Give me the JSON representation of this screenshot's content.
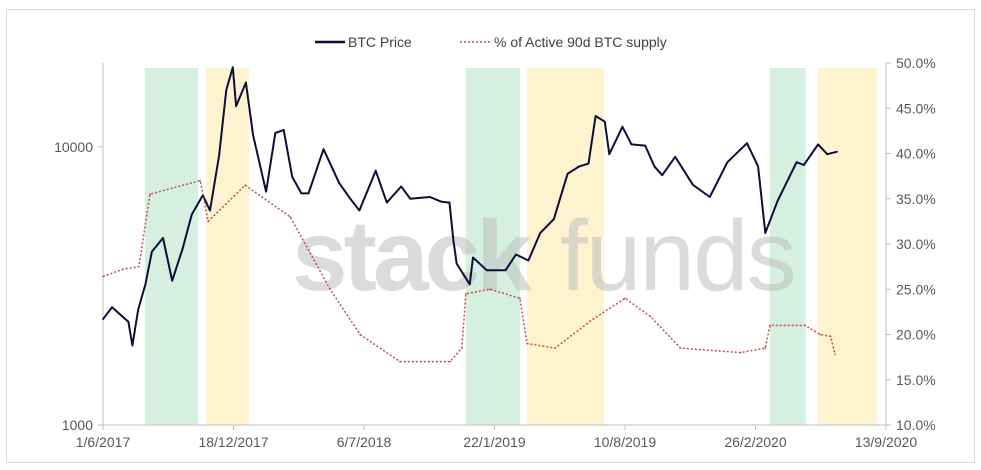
{
  "chart_data": {
    "type": "line",
    "title": "",
    "legend": {
      "placement": "top",
      "entries": [
        "BTC Price",
        "% of Active 90d BTC supply"
      ]
    },
    "watermark": "stackfunds™",
    "x_axis": {
      "type": "date",
      "range": [
        "2017-06-01",
        "2020-09-13"
      ],
      "tick_labels": [
        "1/6/2017",
        "18/12/2017",
        "6/7/2018",
        "22/1/2019",
        "10/8/2019",
        "26/2/2020",
        "13/9/2020"
      ],
      "tick_dates": [
        "2017-06-01",
        "2017-12-18",
        "2018-07-06",
        "2019-01-22",
        "2019-08-10",
        "2020-02-26",
        "2020-09-13"
      ]
    },
    "y_left": {
      "scale": "log",
      "range": [
        1000,
        20000
      ],
      "tick_labels": [
        "1000",
        "10000"
      ],
      "tick_values": [
        1000,
        10000
      ]
    },
    "y_right": {
      "scale": "linear",
      "range": [
        10,
        50
      ],
      "tick_labels": [
        "10.0%",
        "15.0%",
        "20.0%",
        "25.0%",
        "30.0%",
        "35.0%",
        "40.0%",
        "45.0%",
        "50.0%"
      ],
      "tick_values": [
        10,
        15,
        20,
        25,
        30,
        35,
        40,
        45,
        50
      ]
    },
    "grid": false,
    "bands": [
      {
        "color": "green",
        "start": "2017-08-04",
        "end": "2017-10-25"
      },
      {
        "color": "yellow",
        "start": "2017-11-06",
        "end": "2018-01-11"
      },
      {
        "color": "green",
        "start": "2018-12-09",
        "end": "2019-03-02"
      },
      {
        "color": "yellow",
        "start": "2019-03-13",
        "end": "2019-07-09"
      },
      {
        "color": "green",
        "start": "2020-03-19",
        "end": "2020-05-13"
      },
      {
        "color": "yellow",
        "start": "2020-06-01",
        "end": "2020-08-30"
      }
    ],
    "colors": {
      "btc_price": "#0d0d3a",
      "active_supply": "#c0504d",
      "band_green": "#d5f0e0",
      "band_yellow": "#fdf3cf"
    },
    "series": [
      {
        "name": "BTC Price",
        "axis": "left",
        "style": "solid",
        "points": [
          [
            "2017-06-01",
            2400
          ],
          [
            "2017-06-15",
            2650
          ],
          [
            "2017-07-01",
            2450
          ],
          [
            "2017-07-10",
            2350
          ],
          [
            "2017-07-16",
            1930
          ],
          [
            "2017-07-25",
            2600
          ],
          [
            "2017-08-05",
            3200
          ],
          [
            "2017-08-15",
            4200
          ],
          [
            "2017-09-01",
            4700
          ],
          [
            "2017-09-15",
            3300
          ],
          [
            "2017-10-01",
            4300
          ],
          [
            "2017-10-15",
            5700
          ],
          [
            "2017-11-01",
            6700
          ],
          [
            "2017-11-12",
            5900
          ],
          [
            "2017-11-26",
            9300
          ],
          [
            "2017-12-07",
            16000
          ],
          [
            "2017-12-17",
            19300
          ],
          [
            "2017-12-22",
            14000
          ],
          [
            "2018-01-06",
            17000
          ],
          [
            "2018-01-17",
            11000
          ],
          [
            "2018-02-06",
            6900
          ],
          [
            "2018-02-20",
            11200
          ],
          [
            "2018-03-05",
            11500
          ],
          [
            "2018-03-18",
            7800
          ],
          [
            "2018-04-01",
            6800
          ],
          [
            "2018-04-12",
            6800
          ],
          [
            "2018-05-05",
            9800
          ],
          [
            "2018-05-29",
            7400
          ],
          [
            "2018-06-15",
            6500
          ],
          [
            "2018-06-29",
            5900
          ],
          [
            "2018-07-24",
            8200
          ],
          [
            "2018-08-10",
            6300
          ],
          [
            "2018-09-01",
            7200
          ],
          [
            "2018-09-15",
            6500
          ],
          [
            "2018-10-15",
            6600
          ],
          [
            "2018-11-01",
            6350
          ],
          [
            "2018-11-14",
            6300
          ],
          [
            "2018-11-20",
            4600
          ],
          [
            "2018-11-25",
            3800
          ],
          [
            "2018-12-15",
            3200
          ],
          [
            "2018-12-20",
            4000
          ],
          [
            "2019-01-10",
            3600
          ],
          [
            "2019-02-08",
            3600
          ],
          [
            "2019-02-24",
            4100
          ],
          [
            "2019-03-15",
            3900
          ],
          [
            "2019-04-02",
            4900
          ],
          [
            "2019-04-23",
            5500
          ],
          [
            "2019-05-14",
            8000
          ],
          [
            "2019-06-01",
            8500
          ],
          [
            "2019-06-15",
            8700
          ],
          [
            "2019-06-26",
            12900
          ],
          [
            "2019-07-10",
            12300
          ],
          [
            "2019-07-17",
            9400
          ],
          [
            "2019-08-06",
            11800
          ],
          [
            "2019-08-20",
            10200
          ],
          [
            "2019-09-10",
            10100
          ],
          [
            "2019-09-24",
            8500
          ],
          [
            "2019-10-06",
            7900
          ],
          [
            "2019-10-26",
            9200
          ],
          [
            "2019-11-22",
            7300
          ],
          [
            "2019-12-18",
            6600
          ],
          [
            "2020-01-14",
            8800
          ],
          [
            "2020-02-13",
            10300
          ],
          [
            "2020-03-01",
            8500
          ],
          [
            "2020-03-12",
            4900
          ],
          [
            "2020-03-31",
            6400
          ],
          [
            "2020-04-29",
            8800
          ],
          [
            "2020-05-10",
            8600
          ],
          [
            "2020-06-01",
            10200
          ],
          [
            "2020-06-15",
            9400
          ],
          [
            "2020-06-30",
            9600
          ]
        ]
      },
      {
        "name": "% of Active 90d BTC supply",
        "axis": "right",
        "style": "dotted",
        "points": [
          [
            "2017-06-01",
            26.4
          ],
          [
            "2017-07-01",
            27.2
          ],
          [
            "2017-07-26",
            27.5
          ],
          [
            "2017-08-12",
            35.5
          ],
          [
            "2017-10-28",
            37.0
          ],
          [
            "2017-11-09",
            32.5
          ],
          [
            "2018-01-05",
            36.5
          ],
          [
            "2018-03-15",
            33.0
          ],
          [
            "2018-05-15",
            25.0
          ],
          [
            "2018-06-30",
            20.0
          ],
          [
            "2018-08-30",
            17.0
          ],
          [
            "2018-11-15",
            17.0
          ],
          [
            "2018-12-03",
            18.5
          ],
          [
            "2018-12-09",
            24.5
          ],
          [
            "2019-01-15",
            25.0
          ],
          [
            "2019-03-02",
            24.0
          ],
          [
            "2019-03-13",
            19.0
          ],
          [
            "2019-04-25",
            18.5
          ],
          [
            "2019-06-18",
            21.5
          ],
          [
            "2019-08-10",
            24.0
          ],
          [
            "2019-09-18",
            22.0
          ],
          [
            "2019-11-03",
            18.5
          ],
          [
            "2020-02-03",
            18.0
          ],
          [
            "2020-03-12",
            18.5
          ],
          [
            "2020-03-19",
            21.0
          ],
          [
            "2020-05-12",
            21.0
          ],
          [
            "2020-06-04",
            20.0
          ],
          [
            "2020-06-20",
            19.8
          ],
          [
            "2020-06-27",
            17.8
          ]
        ]
      }
    ]
  }
}
